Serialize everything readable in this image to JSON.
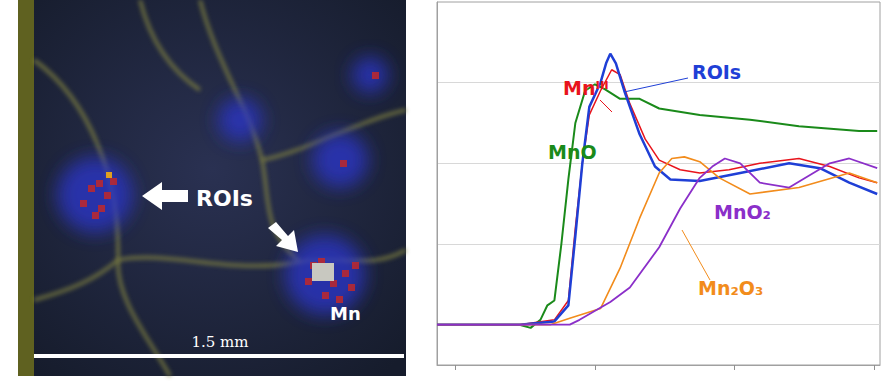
{
  "image_panel": {
    "marker_label": "ROIs",
    "element": "Mn",
    "scale_bar": "1.5 mm"
  },
  "chart_data": {
    "type": "line",
    "xlim": [
      -1.3,
      30.4
    ],
    "xticks": [
      0,
      10,
      20,
      30
    ],
    "ylim": [
      -0.25,
      2.0
    ],
    "yticks": [
      0,
      0.5,
      1,
      1.5
    ],
    "grid": true,
    "tick_labels": false,
    "series": [
      {
        "name": "MnO",
        "color": "#1a8a1a",
        "line_style": "solid",
        "x": [
          -1.3,
          3.2,
          4.6,
          5.4,
          6.1,
          6.6,
          7.1,
          7.6,
          8.1,
          8.6,
          9.3,
          10.0,
          10.7,
          11.8,
          13.2,
          14.6,
          17.5,
          21.1,
          24.6,
          28.9,
          30.2
        ],
        "values": [
          0,
          0,
          0,
          -0.02,
          0.03,
          0.12,
          0.15,
          0.5,
          0.9,
          1.25,
          1.45,
          1.49,
          1.46,
          1.4,
          1.4,
          1.34,
          1.3,
          1.27,
          1.23,
          1.2,
          1.2
        ]
      },
      {
        "name": "Mnᴵᴵᴵ",
        "color": "#e8141c",
        "line_style": "solid",
        "x": [
          -1.3,
          4.6,
          7.1,
          8.1,
          8.6,
          9.1,
          9.6,
          10.4,
          11.2,
          11.8,
          12.5,
          13.6,
          14.6,
          16.1,
          17.5,
          19.6,
          21.8,
          24.6,
          26.8,
          28.9,
          30.2
        ],
        "values": [
          0,
          0,
          0.03,
          0.15,
          0.6,
          1.0,
          1.3,
          1.45,
          1.58,
          1.55,
          1.37,
          1.15,
          1.02,
          0.96,
          0.94,
          0.96,
          1.0,
          1.03,
          0.98,
          0.91,
          0.88
        ]
      },
      {
        "name": "ROIs",
        "color": "#1f3fd6",
        "line_style": "solid",
        "x": [
          -1.3,
          4.6,
          7.1,
          8.1,
          8.6,
          9.1,
          9.6,
          10.4,
          10.8,
          11.1,
          11.5,
          12.1,
          13.2,
          14.3,
          15.4,
          17.5,
          20.4,
          23.9,
          26.1,
          28.2,
          30.2
        ],
        "values": [
          0,
          0,
          0.02,
          0.12,
          0.55,
          1.0,
          1.35,
          1.5,
          1.62,
          1.68,
          1.62,
          1.45,
          1.18,
          0.98,
          0.9,
          0.89,
          0.94,
          1.0,
          0.97,
          0.88,
          0.81
        ]
      },
      {
        "name": "Mn₂O₃",
        "color": "#f28c1c",
        "line_style": "solid",
        "x": [
          -1.3,
          6.8,
          8.2,
          10.4,
          11.8,
          13.2,
          14.6,
          15.5,
          16.4,
          17.5,
          18.9,
          21.1,
          24.6,
          28.2,
          30.2
        ],
        "values": [
          0,
          0,
          0.04,
          0.1,
          0.35,
          0.66,
          0.94,
          1.03,
          1.04,
          1.01,
          0.91,
          0.81,
          0.85,
          0.94,
          0.88
        ]
      },
      {
        "name": "MnO₂",
        "color": "#8b2fc9",
        "line_style": "solid",
        "x": [
          -1.3,
          8.2,
          8.9,
          11.1,
          12.5,
          14.6,
          16.1,
          17.5,
          18.4,
          19.3,
          20.4,
          21.8,
          23.9,
          26.8,
          28.2,
          30.2
        ],
        "values": [
          0,
          0,
          0.03,
          0.14,
          0.23,
          0.48,
          0.72,
          0.91,
          0.98,
          1.03,
          1.0,
          0.88,
          0.85,
          1.0,
          1.03,
          0.97
        ]
      }
    ]
  }
}
